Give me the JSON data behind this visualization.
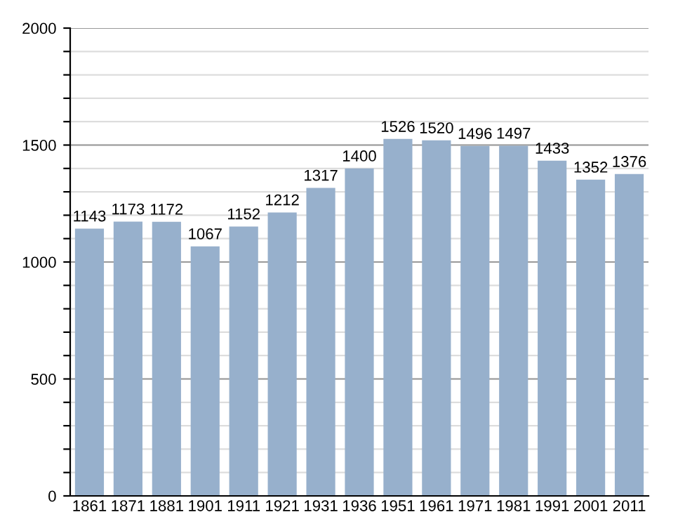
{
  "chart_data": {
    "type": "bar",
    "categories": [
      "1861",
      "1871",
      "1881",
      "1901",
      "1911",
      "1921",
      "1931",
      "1936",
      "1951",
      "1961",
      "1971",
      "1981",
      "1991",
      "2001",
      "2011"
    ],
    "values": [
      1143,
      1173,
      1172,
      1067,
      1152,
      1212,
      1317,
      1400,
      1526,
      1520,
      1496,
      1497,
      1433,
      1352,
      1376
    ],
    "color": "#97b0cc",
    "ylim": [
      0,
      2000
    ],
    "yticks": [
      0,
      {
        "value": 100,
        "label": null
      },
      {
        "value": 200,
        "label": null
      },
      {
        "value": 300,
        "label": null
      },
      {
        "value": 400,
        "label": null
      },
      500,
      {
        "value": 600,
        "label": null
      },
      {
        "value": 700,
        "label": null
      },
      {
        "value": 800,
        "label": null
      },
      {
        "value": 900,
        "label": null
      },
      1000,
      {
        "value": 1100,
        "label": null
      },
      {
        "value": 1200,
        "label": null
      },
      {
        "value": 1300,
        "label": null
      },
      {
        "value": 1400,
        "label": null
      },
      1500,
      {
        "value": 1600,
        "label": null
      },
      {
        "value": 1700,
        "label": null
      },
      {
        "value": 1800,
        "label": null
      },
      {
        "value": 1900,
        "label": null
      },
      2000
    ],
    "grid": "y",
    "data_labels": true
  }
}
